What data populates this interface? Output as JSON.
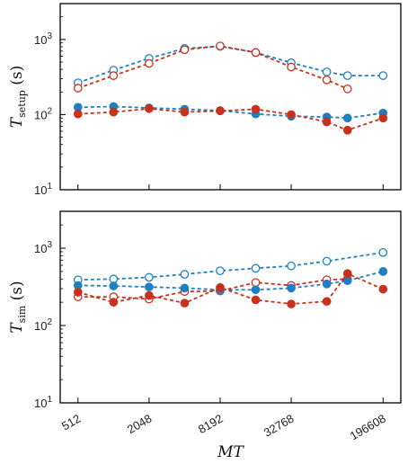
{
  "chart_data": [
    {
      "type": "line",
      "panel": "top",
      "ylabel_main": "T",
      "ylabel_sub": "setup",
      "ylabel_unit": " (s)",
      "xlabel": "",
      "yscale": "log",
      "ylim": [
        10,
        3000
      ],
      "xscale": "log2",
      "xlim": [
        362,
        277800
      ],
      "xticks": [
        512,
        2048,
        8192,
        32768,
        196608
      ],
      "xtick_labels": [
        "512",
        "2048",
        "8192",
        "32768",
        "196608"
      ],
      "yticks": [
        10,
        100,
        1000
      ],
      "ytick_labels": [
        "10¹",
        "10²",
        "10³"
      ],
      "series": [
        {
          "marker": "open",
          "color": "#1f7fc4",
          "x": [
            512,
            1024,
            2048,
            4096,
            8192,
            16384,
            32768,
            65536,
            98304,
            196608
          ],
          "y": [
            265,
            390,
            560,
            760,
            810,
            670,
            490,
            370,
            330,
            330
          ]
        },
        {
          "marker": "open",
          "color": "#c8321c",
          "x": [
            512,
            1024,
            2048,
            4096,
            8192,
            16384,
            32768,
            65536,
            98304
          ],
          "y": [
            225,
            330,
            480,
            730,
            820,
            670,
            430,
            290,
            220
          ]
        },
        {
          "marker": "filled",
          "color": "#1f7fc4",
          "x": [
            512,
            1024,
            2048,
            4096,
            8192,
            16384,
            32768,
            65536,
            98304,
            196608
          ],
          "y": [
            125,
            128,
            123,
            118,
            113,
            102,
            95,
            93,
            90,
            105
          ]
        },
        {
          "marker": "filled",
          "color": "#c8321c",
          "x": [
            512,
            1024,
            2048,
            4096,
            8192,
            16384,
            32768,
            65536,
            98304,
            196608
          ],
          "y": [
            102,
            108,
            120,
            108,
            112,
            118,
            100,
            80,
            62,
            90
          ]
        }
      ]
    },
    {
      "type": "line",
      "panel": "bottom",
      "ylabel_main": "T",
      "ylabel_sub": "sim",
      "ylabel_unit": " (s)",
      "xlabel": "MT",
      "yscale": "log",
      "ylim": [
        10,
        3000
      ],
      "xscale": "log2",
      "xlim": [
        362,
        277800
      ],
      "xticks": [
        512,
        2048,
        8192,
        32768,
        196608
      ],
      "xtick_labels": [
        "512",
        "2048",
        "8192",
        "32768",
        "196608"
      ],
      "yticks": [
        10,
        100,
        1000
      ],
      "ytick_labels": [
        "10¹",
        "10²",
        "10³"
      ],
      "series": [
        {
          "marker": "open",
          "color": "#1f7fc4",
          "x": [
            512,
            1024,
            2048,
            4096,
            8192,
            16384,
            32768,
            65536,
            196608
          ],
          "y": [
            390,
            400,
            420,
            460,
            510,
            550,
            590,
            680,
            880
          ]
        },
        {
          "marker": "open",
          "color": "#c8321c",
          "x": [
            512,
            1024,
            2048,
            4096,
            8192,
            16384,
            32768,
            65536,
            98304
          ],
          "y": [
            235,
            235,
            220,
            275,
            280,
            360,
            330,
            390,
            400
          ]
        },
        {
          "marker": "filled",
          "color": "#1f7fc4",
          "x": [
            512,
            1024,
            2048,
            4096,
            8192,
            16384,
            32768,
            65536,
            98304,
            196608
          ],
          "y": [
            330,
            325,
            315,
            305,
            290,
            290,
            305,
            345,
            380,
            500
          ]
        },
        {
          "marker": "filled",
          "color": "#c8321c",
          "x": [
            512,
            1024,
            2048,
            4096,
            8192,
            16384,
            32768,
            65536,
            98304,
            196608
          ],
          "y": [
            270,
            200,
            245,
            195,
            310,
            215,
            190,
            205,
            470,
            295
          ]
        }
      ]
    }
  ]
}
